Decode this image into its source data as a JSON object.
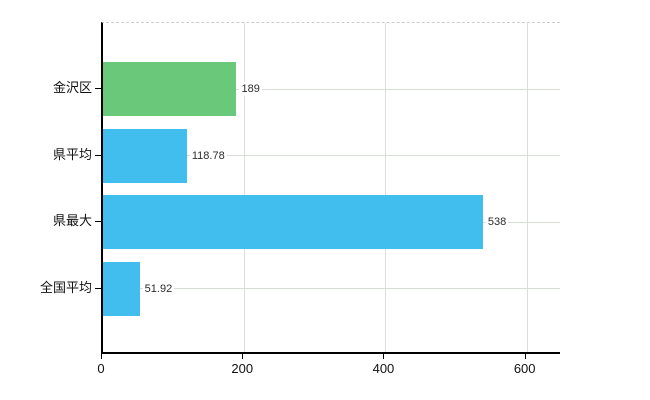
{
  "chart_data": {
    "type": "bar",
    "orientation": "horizontal",
    "title": "",
    "xlabel": "",
    "ylabel": "",
    "categories": [
      "金沢区",
      "県平均",
      "県最大",
      "全国平均"
    ],
    "values": [
      189,
      118.78,
      538,
      51.92
    ],
    "value_labels": [
      "189",
      "118.78",
      "538",
      "51.92"
    ],
    "bar_colors": [
      "#69c87a",
      "#41bdee",
      "#41bdee",
      "#41bdee"
    ],
    "x_ticks": [
      0,
      200,
      400,
      600
    ],
    "x_tick_labels": [
      "0",
      "200",
      "400",
      "600"
    ],
    "xlim": [
      0,
      650
    ],
    "grid": true,
    "legend": "none"
  },
  "colors": {
    "background": "#ffffff",
    "axis": "#000000",
    "vertical_gridline": "#dcdcdc",
    "horizontal_gridline": "#d6ddd4",
    "top_border_dashed": "#cccccc",
    "green_bar": "#69c87a",
    "blue_bar": "#41bdee",
    "value_text": "#2b2b2b",
    "tick_text": "#111111"
  }
}
